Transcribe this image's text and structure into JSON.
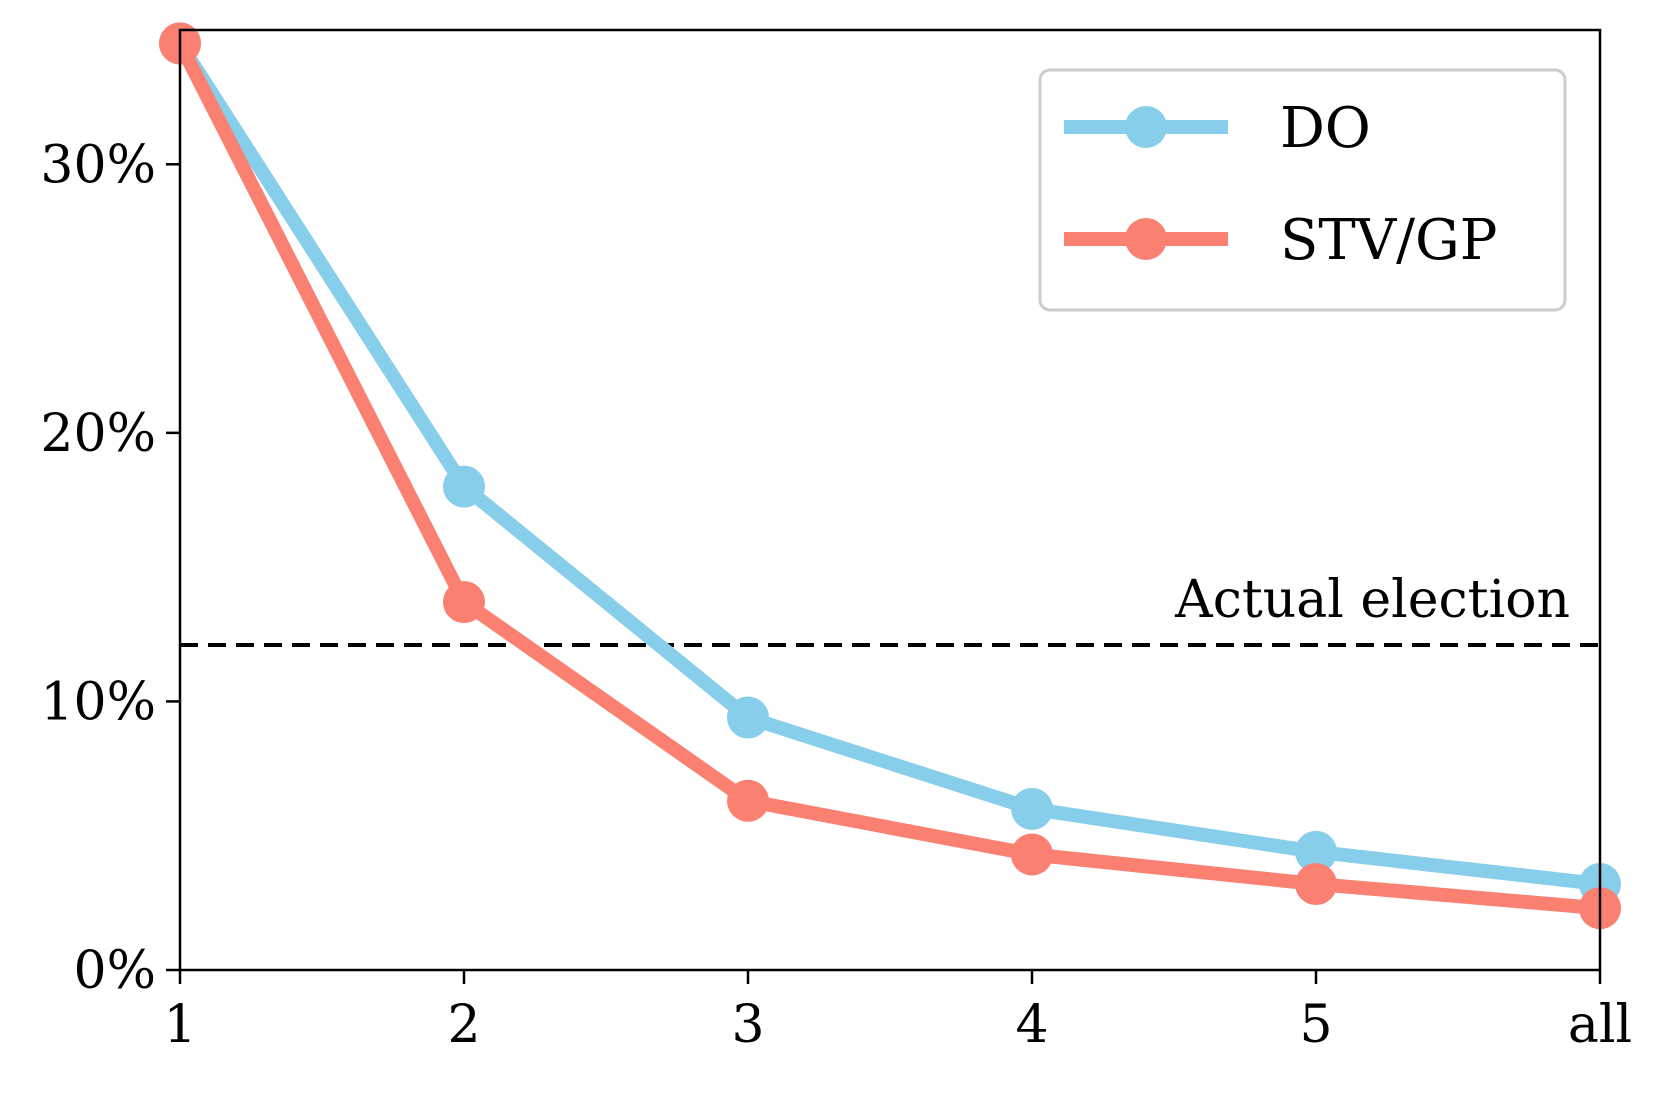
{
  "chart_data": {
    "type": "line",
    "title": "",
    "xlabel": "",
    "ylabel": "",
    "categories": [
      "1",
      "2",
      "3",
      "4",
      "5",
      "all"
    ],
    "ylim": [
      0,
      35
    ],
    "yticks": [
      0,
      10,
      20,
      30
    ],
    "ytick_labels": [
      "0%",
      "10%",
      "20%",
      "30%"
    ],
    "grid": false,
    "legend_position": "top-right",
    "series": [
      {
        "name": "DO",
        "color": "#87CEEB",
        "values": [
          34.5,
          18.0,
          9.4,
          6.0,
          4.4,
          3.2
        ]
      },
      {
        "name": "STV/GP",
        "color": "#FA8072",
        "values": [
          34.5,
          13.7,
          6.3,
          4.3,
          3.2,
          2.3
        ]
      }
    ],
    "reference_line": {
      "label": "Actual election",
      "value": 12.1,
      "style": "dashed",
      "color": "#000000"
    }
  }
}
